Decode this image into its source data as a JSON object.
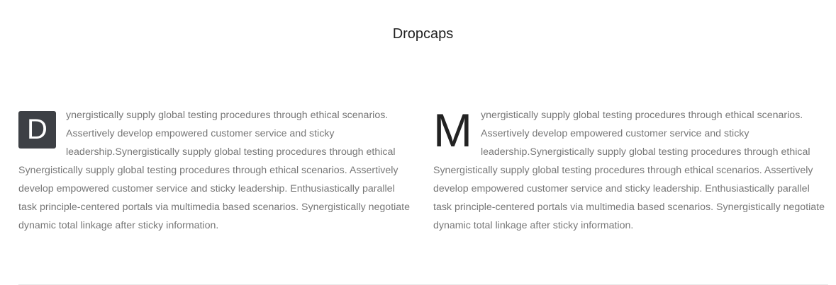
{
  "section": {
    "title": "Dropcaps"
  },
  "columns": [
    {
      "dropcap": "D",
      "style": "boxed",
      "text": "ynergistically supply global testing procedures through ethical scenarios. Assertively develop empowered customer service and sticky leadership.Synergistically supply global testing procedures through ethical Synergistically supply global testing procedures through ethical scenarios. Assertively develop empowered customer service and sticky leadership. Enthusiastically parallel task principle-centered portals via multimedia based scenarios. Synergistically negotiate dynamic total linkage after sticky information."
    },
    {
      "dropcap": "M",
      "style": "plain",
      "text": "ynergistically supply global testing procedures through ethical scenarios. Assertively develop empowered customer service and sticky leadership.Synergistically supply global testing procedures through ethical Synergistically supply global testing procedures through ethical scenarios. Assertively develop empowered customer service and sticky leadership. Enthusiastically parallel task principle-centered portals via multimedia based scenarios. Synergistically negotiate dynamic total linkage after sticky information."
    }
  ],
  "colors": {
    "dropcap_box_bg": "#3d4045",
    "body_text": "#777777",
    "heading_text": "#222222"
  }
}
